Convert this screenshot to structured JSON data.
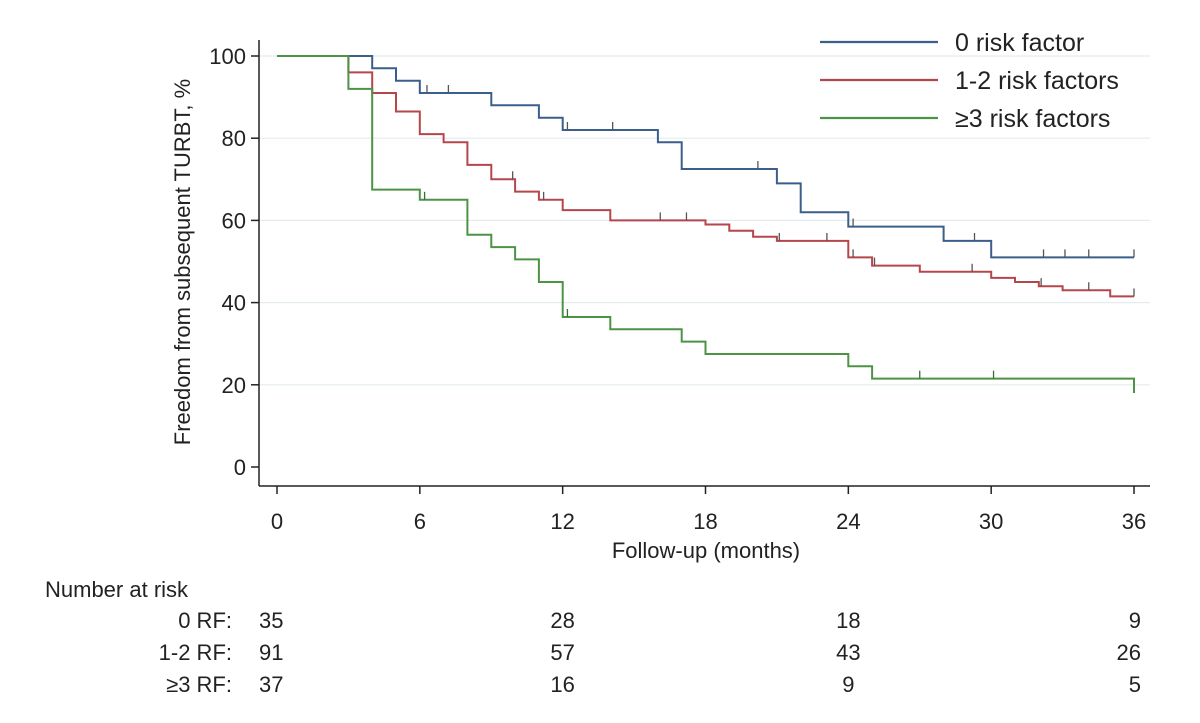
{
  "chart_data": {
    "type": "line",
    "subtype": "kaplan-meier-step",
    "title": "",
    "xlabel": "Follow-up (months)",
    "ylabel": "Freedom from subsequent TURBT, %",
    "xlim": [
      0,
      36
    ],
    "ylim": [
      0,
      100
    ],
    "x_ticks": [
      0,
      6,
      12,
      18,
      24,
      30,
      36
    ],
    "y_ticks": [
      0,
      20,
      40,
      60,
      80,
      100
    ],
    "grid": "horizontal",
    "legend_position": "top-right",
    "series": [
      {
        "name": "0 risk factor",
        "color": "#3a5f8c",
        "steps": [
          [
            0,
            100
          ],
          [
            4,
            100
          ],
          [
            4,
            97
          ],
          [
            5,
            97
          ],
          [
            5,
            94
          ],
          [
            6,
            94
          ],
          [
            6,
            91
          ],
          [
            9,
            91
          ],
          [
            9,
            88
          ],
          [
            11,
            88
          ],
          [
            11,
            85
          ],
          [
            12,
            85
          ],
          [
            12,
            82
          ],
          [
            16,
            82
          ],
          [
            16,
            79
          ],
          [
            17,
            79
          ],
          [
            17,
            72.5
          ],
          [
            21,
            72.5
          ],
          [
            21,
            69
          ],
          [
            22,
            69
          ],
          [
            22,
            62
          ],
          [
            24,
            62
          ],
          [
            24,
            58.5
          ],
          [
            28,
            58.5
          ],
          [
            28,
            55
          ],
          [
            30,
            55
          ],
          [
            30,
            51
          ],
          [
            36,
            51
          ]
        ],
        "censor": [
          6.3,
          7.2,
          12.2,
          14.1,
          20.2,
          24.2,
          29.3,
          32.2,
          33.1,
          34.1,
          36
        ]
      },
      {
        "name": "1-2 risk factors",
        "color": "#b5464b",
        "steps": [
          [
            0,
            100
          ],
          [
            3,
            100
          ],
          [
            3,
            96
          ],
          [
            4,
            96
          ],
          [
            4,
            91
          ],
          [
            5,
            91
          ],
          [
            5,
            86.5
          ],
          [
            6,
            86.5
          ],
          [
            6,
            81
          ],
          [
            7,
            81
          ],
          [
            7,
            79
          ],
          [
            8,
            79
          ],
          [
            8,
            73.5
          ],
          [
            9,
            73.5
          ],
          [
            9,
            70
          ],
          [
            10,
            70
          ],
          [
            10,
            67
          ],
          [
            11,
            67
          ],
          [
            11,
            65
          ],
          [
            12,
            65
          ],
          [
            12,
            62.5
          ],
          [
            14,
            62.5
          ],
          [
            14,
            60
          ],
          [
            18,
            60
          ],
          [
            18,
            59
          ],
          [
            19,
            59
          ],
          [
            19,
            57.5
          ],
          [
            20,
            57.5
          ],
          [
            20,
            56
          ],
          [
            21,
            56
          ],
          [
            21,
            55
          ],
          [
            24,
            55
          ],
          [
            24,
            51
          ],
          [
            25,
            51
          ],
          [
            25,
            49
          ],
          [
            27,
            49
          ],
          [
            27,
            47.5
          ],
          [
            30,
            47.5
          ],
          [
            30,
            46
          ],
          [
            31,
            46
          ],
          [
            31,
            45
          ],
          [
            32,
            45
          ],
          [
            32,
            44
          ],
          [
            33,
            44
          ],
          [
            33,
            43
          ],
          [
            35,
            43
          ],
          [
            35,
            41.5
          ],
          [
            36,
            41.5
          ]
        ],
        "censor": [
          9.9,
          11.2,
          16.1,
          17.2,
          21.1,
          23.1,
          24.2,
          25.1,
          29.2,
          32.1,
          34.1,
          36
        ]
      },
      {
        "name": "≥3 risk factors",
        "color": "#4d9346",
        "steps": [
          [
            0,
            100
          ],
          [
            3,
            100
          ],
          [
            3,
            92
          ],
          [
            4,
            92
          ],
          [
            4,
            67.5
          ],
          [
            6,
            67.5
          ],
          [
            6,
            65
          ],
          [
            8,
            65
          ],
          [
            8,
            56.5
          ],
          [
            9,
            56.5
          ],
          [
            9,
            53.5
          ],
          [
            10,
            53.5
          ],
          [
            10,
            50.5
          ],
          [
            11,
            50.5
          ],
          [
            11,
            45
          ],
          [
            12,
            45
          ],
          [
            12,
            36.5
          ],
          [
            14,
            36.5
          ],
          [
            14,
            33.5
          ],
          [
            17,
            33.5
          ],
          [
            17,
            30.5
          ],
          [
            18,
            30.5
          ],
          [
            18,
            27.5
          ],
          [
            24,
            27.5
          ],
          [
            24,
            24.5
          ],
          [
            25,
            24.5
          ],
          [
            25,
            21.5
          ],
          [
            36,
            21.5
          ],
          [
            36,
            18
          ]
        ],
        "censor": [
          6.2,
          12.2,
          27,
          30.1
        ]
      }
    ]
  },
  "risk_table": {
    "title": "Number at risk",
    "times": [
      0,
      12,
      24,
      36
    ],
    "rows": [
      {
        "label": "0 RF:",
        "counts": [
          "35",
          "28",
          "18",
          "9"
        ]
      },
      {
        "label": "1-2 RF:",
        "counts": [
          "91",
          "57",
          "43",
          "26"
        ]
      },
      {
        "label": "≥3 RF:",
        "counts": [
          "37",
          "16",
          "9",
          "5"
        ]
      }
    ]
  }
}
